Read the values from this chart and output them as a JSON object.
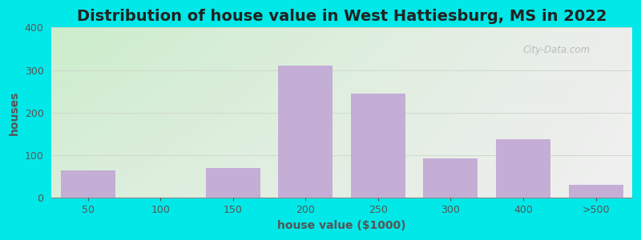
{
  "title": "Distribution of house value in West Hattiesburg, MS in 2022",
  "xlabel": "house value ($1000)",
  "ylabel": "houses",
  "categories": [
    "50",
    "100",
    "150",
    "200",
    "250",
    "300",
    "400",
    ">500"
  ],
  "values": [
    65,
    0,
    70,
    310,
    245,
    93,
    138,
    30
  ],
  "bar_color": "#c4aed6",
  "ylim": [
    0,
    400
  ],
  "yticks": [
    0,
    100,
    200,
    300,
    400
  ],
  "background_outer": "#00e8e8",
  "bg_left": "#cceacc",
  "bg_right": "#eef5ee",
  "bg_top": "#f5f8f0",
  "grid_color": "#d0d8cc",
  "title_fontsize": 14,
  "axis_label_fontsize": 10,
  "tick_fontsize": 9,
  "watermark_text": "City-Data.com",
  "watermark_color": "#aaaaaa",
  "bar_width": 0.75
}
